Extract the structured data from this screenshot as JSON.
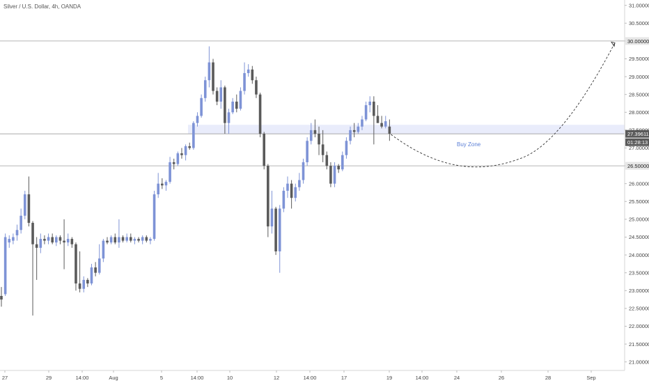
{
  "title": "Silver / U.S. Dollar, 4h, OANDA",
  "chart_data": {
    "type": "candlestick",
    "title": "Silver / U.S. Dollar, 4h, OANDA",
    "ylim": [
      20.76,
      31.15
    ],
    "y_ticks": [
      "31.00000",
      "30.50000",
      "30.00000",
      "29.50000",
      "29.00000",
      "28.50000",
      "28.00000",
      "27.50000",
      "27.00000",
      "26.50000",
      "26.00000",
      "25.50000",
      "25.00000",
      "24.50000",
      "24.00000",
      "23.50000",
      "23.00000",
      "22.50000",
      "22.00000",
      "21.50000",
      "21.00000"
    ],
    "x_ticks": [
      "27",
      "29",
      "14:00",
      "Aug",
      "5",
      "14:00",
      "10",
      "12",
      "14:00",
      "17",
      "19",
      "14:00",
      "24",
      "26",
      "28",
      "Sep"
    ],
    "price_tags": {
      "level_high": "30.00000",
      "level_low": "26.50000",
      "last_price": "27.39611",
      "countdown": "01:28:13"
    },
    "horizontal_levels": [
      30.0,
      26.5,
      27.39611
    ],
    "buy_zone": {
      "label": "Buy Zone",
      "from": 27.4,
      "to": 27.65
    },
    "colors": {
      "up": "#7e93d6",
      "down": "#5a5a5a",
      "zone": "#e9ecfb",
      "level_line": "#9e9e9e",
      "path": "#333333"
    },
    "candles": [
      {
        "o": 22.85,
        "h": 23.1,
        "l": 22.55,
        "c": 22.75
      },
      {
        "o": 22.9,
        "h": 24.6,
        "l": 22.85,
        "c": 24.5
      },
      {
        "o": 24.35,
        "h": 24.55,
        "l": 24.2,
        "c": 24.45
      },
      {
        "o": 24.4,
        "h": 24.6,
        "l": 24.3,
        "c": 24.5
      },
      {
        "o": 24.55,
        "h": 24.85,
        "l": 24.4,
        "c": 24.7
      },
      {
        "o": 24.7,
        "h": 25.3,
        "l": 24.6,
        "c": 25.1
      },
      {
        "o": 25.1,
        "h": 25.8,
        "l": 25.0,
        "c": 25.7
      },
      {
        "o": 25.7,
        "h": 26.2,
        "l": 24.8,
        "c": 24.9
      },
      {
        "o": 24.9,
        "h": 24.95,
        "l": 22.3,
        "c": 24.3
      },
      {
        "o": 24.3,
        "h": 24.5,
        "l": 23.3,
        "c": 24.2
      },
      {
        "o": 24.2,
        "h": 24.6,
        "l": 24.05,
        "c": 24.45
      },
      {
        "o": 24.45,
        "h": 24.55,
        "l": 24.3,
        "c": 24.4
      },
      {
        "o": 24.4,
        "h": 24.6,
        "l": 24.3,
        "c": 24.5
      },
      {
        "o": 24.5,
        "h": 24.6,
        "l": 24.3,
        "c": 24.35
      },
      {
        "o": 24.35,
        "h": 24.55,
        "l": 24.25,
        "c": 24.5
      },
      {
        "o": 24.5,
        "h": 24.55,
        "l": 24.3,
        "c": 24.4
      },
      {
        "o": 24.4,
        "h": 25.0,
        "l": 23.6,
        "c": 24.35
      },
      {
        "o": 24.35,
        "h": 24.6,
        "l": 24.25,
        "c": 24.45
      },
      {
        "o": 24.45,
        "h": 24.5,
        "l": 24.2,
        "c": 24.3
      },
      {
        "o": 24.3,
        "h": 24.35,
        "l": 23.0,
        "c": 23.2
      },
      {
        "o": 23.2,
        "h": 24.1,
        "l": 22.95,
        "c": 23.05
      },
      {
        "o": 23.05,
        "h": 23.4,
        "l": 22.95,
        "c": 23.3
      },
      {
        "o": 23.3,
        "h": 23.35,
        "l": 23.1,
        "c": 23.2
      },
      {
        "o": 23.2,
        "h": 23.75,
        "l": 23.15,
        "c": 23.65
      },
      {
        "o": 23.65,
        "h": 23.8,
        "l": 23.4,
        "c": 23.5
      },
      {
        "o": 23.5,
        "h": 24.3,
        "l": 23.45,
        "c": 23.9
      },
      {
        "o": 23.9,
        "h": 24.45,
        "l": 23.8,
        "c": 24.4
      },
      {
        "o": 24.4,
        "h": 24.5,
        "l": 24.3,
        "c": 24.35
      },
      {
        "o": 24.35,
        "h": 24.55,
        "l": 24.3,
        "c": 24.5
      },
      {
        "o": 24.5,
        "h": 24.6,
        "l": 24.3,
        "c": 24.35
      },
      {
        "o": 24.35,
        "h": 25.0,
        "l": 24.2,
        "c": 24.5
      },
      {
        "o": 24.5,
        "h": 24.55,
        "l": 24.35,
        "c": 24.4
      },
      {
        "o": 24.4,
        "h": 24.6,
        "l": 24.35,
        "c": 24.5
      },
      {
        "o": 24.5,
        "h": 24.6,
        "l": 24.35,
        "c": 24.4
      },
      {
        "o": 24.4,
        "h": 24.5,
        "l": 24.3,
        "c": 24.45
      },
      {
        "o": 24.45,
        "h": 24.5,
        "l": 24.35,
        "c": 24.4
      },
      {
        "o": 24.4,
        "h": 24.55,
        "l": 24.3,
        "c": 24.5
      },
      {
        "o": 24.5,
        "h": 24.55,
        "l": 24.35,
        "c": 24.4
      },
      {
        "o": 24.4,
        "h": 24.5,
        "l": 24.3,
        "c": 24.45
      },
      {
        "o": 24.45,
        "h": 25.8,
        "l": 24.4,
        "c": 25.7
      },
      {
        "o": 25.7,
        "h": 26.3,
        "l": 25.6,
        "c": 26.0
      },
      {
        "o": 26.0,
        "h": 26.15,
        "l": 25.85,
        "c": 25.95
      },
      {
        "o": 25.95,
        "h": 26.1,
        "l": 25.8,
        "c": 26.05
      },
      {
        "o": 26.05,
        "h": 26.75,
        "l": 26.0,
        "c": 26.6
      },
      {
        "o": 26.6,
        "h": 26.7,
        "l": 26.4,
        "c": 26.55
      },
      {
        "o": 26.55,
        "h": 26.9,
        "l": 26.5,
        "c": 26.85
      },
      {
        "o": 26.85,
        "h": 27.0,
        "l": 26.7,
        "c": 26.8
      },
      {
        "o": 26.8,
        "h": 27.1,
        "l": 26.65,
        "c": 27.05
      },
      {
        "o": 27.05,
        "h": 27.15,
        "l": 26.95,
        "c": 27.0
      },
      {
        "o": 27.0,
        "h": 27.75,
        "l": 26.95,
        "c": 27.7
      },
      {
        "o": 27.7,
        "h": 28.0,
        "l": 27.6,
        "c": 27.9
      },
      {
        "o": 27.9,
        "h": 28.5,
        "l": 27.85,
        "c": 28.4
      },
      {
        "o": 28.4,
        "h": 29.0,
        "l": 28.3,
        "c": 28.9
      },
      {
        "o": 28.9,
        "h": 29.85,
        "l": 28.7,
        "c": 29.4
      },
      {
        "o": 29.4,
        "h": 29.5,
        "l": 28.5,
        "c": 28.6
      },
      {
        "o": 28.6,
        "h": 28.7,
        "l": 28.2,
        "c": 28.3
      },
      {
        "o": 28.3,
        "h": 28.9,
        "l": 28.1,
        "c": 28.7
      },
      {
        "o": 28.7,
        "h": 28.75,
        "l": 27.4,
        "c": 27.7
      },
      {
        "o": 27.7,
        "h": 28.1,
        "l": 27.4,
        "c": 28.0
      },
      {
        "o": 28.0,
        "h": 28.4,
        "l": 27.95,
        "c": 28.3
      },
      {
        "o": 28.3,
        "h": 28.5,
        "l": 28.0,
        "c": 28.1
      },
      {
        "o": 28.1,
        "h": 28.7,
        "l": 28.05,
        "c": 28.6
      },
      {
        "o": 28.6,
        "h": 29.4,
        "l": 28.5,
        "c": 29.1
      },
      {
        "o": 29.1,
        "h": 29.35,
        "l": 29.0,
        "c": 29.2
      },
      {
        "o": 29.2,
        "h": 29.3,
        "l": 28.8,
        "c": 28.9
      },
      {
        "o": 28.9,
        "h": 29.0,
        "l": 28.4,
        "c": 28.5
      },
      {
        "o": 28.5,
        "h": 28.55,
        "l": 27.3,
        "c": 27.4
      },
      {
        "o": 27.4,
        "h": 27.45,
        "l": 26.4,
        "c": 26.5
      },
      {
        "o": 26.5,
        "h": 26.55,
        "l": 24.5,
        "c": 24.8
      },
      {
        "o": 24.8,
        "h": 25.8,
        "l": 24.6,
        "c": 25.3
      },
      {
        "o": 25.3,
        "h": 25.35,
        "l": 24.0,
        "c": 24.1
      },
      {
        "o": 24.1,
        "h": 25.4,
        "l": 23.5,
        "c": 25.3
      },
      {
        "o": 25.3,
        "h": 25.9,
        "l": 25.2,
        "c": 25.8
      },
      {
        "o": 25.8,
        "h": 26.2,
        "l": 25.6,
        "c": 26.0
      },
      {
        "o": 26.0,
        "h": 26.1,
        "l": 25.3,
        "c": 25.6
      },
      {
        "o": 25.6,
        "h": 26.0,
        "l": 25.5,
        "c": 25.9
      },
      {
        "o": 25.9,
        "h": 26.3,
        "l": 25.8,
        "c": 26.1
      },
      {
        "o": 26.1,
        "h": 26.7,
        "l": 26.0,
        "c": 26.6
      },
      {
        "o": 26.6,
        "h": 27.3,
        "l": 26.5,
        "c": 27.2
      },
      {
        "o": 27.2,
        "h": 27.7,
        "l": 27.1,
        "c": 27.5
      },
      {
        "o": 27.5,
        "h": 27.8,
        "l": 27.3,
        "c": 27.4
      },
      {
        "o": 27.4,
        "h": 27.6,
        "l": 26.8,
        "c": 27.1
      },
      {
        "o": 27.1,
        "h": 27.5,
        "l": 26.6,
        "c": 26.8
      },
      {
        "o": 26.8,
        "h": 26.9,
        "l": 26.4,
        "c": 26.5
      },
      {
        "o": 26.5,
        "h": 26.6,
        "l": 25.9,
        "c": 26.0
      },
      {
        "o": 26.0,
        "h": 26.6,
        "l": 25.9,
        "c": 26.5
      },
      {
        "o": 26.5,
        "h": 26.55,
        "l": 26.3,
        "c": 26.4
      },
      {
        "o": 26.4,
        "h": 26.9,
        "l": 26.35,
        "c": 26.8
      },
      {
        "o": 26.8,
        "h": 27.3,
        "l": 26.7,
        "c": 27.2
      },
      {
        "o": 27.2,
        "h": 27.6,
        "l": 27.1,
        "c": 27.5
      },
      {
        "o": 27.5,
        "h": 27.7,
        "l": 27.3,
        "c": 27.45
      },
      {
        "o": 27.45,
        "h": 27.7,
        "l": 27.4,
        "c": 27.6
      },
      {
        "o": 27.6,
        "h": 27.9,
        "l": 27.5,
        "c": 27.8
      },
      {
        "o": 27.8,
        "h": 28.3,
        "l": 27.75,
        "c": 28.2
      },
      {
        "o": 28.2,
        "h": 28.45,
        "l": 28.0,
        "c": 28.3
      },
      {
        "o": 28.3,
        "h": 28.45,
        "l": 27.1,
        "c": 27.9
      },
      {
        "o": 27.9,
        "h": 28.2,
        "l": 27.7,
        "c": 27.7
      },
      {
        "o": 27.7,
        "h": 27.9,
        "l": 27.55,
        "c": 27.6
      },
      {
        "o": 27.6,
        "h": 27.9,
        "l": 27.55,
        "c": 27.75
      },
      {
        "o": 27.6,
        "h": 27.8,
        "l": 27.2,
        "c": 27.4
      }
    ]
  }
}
